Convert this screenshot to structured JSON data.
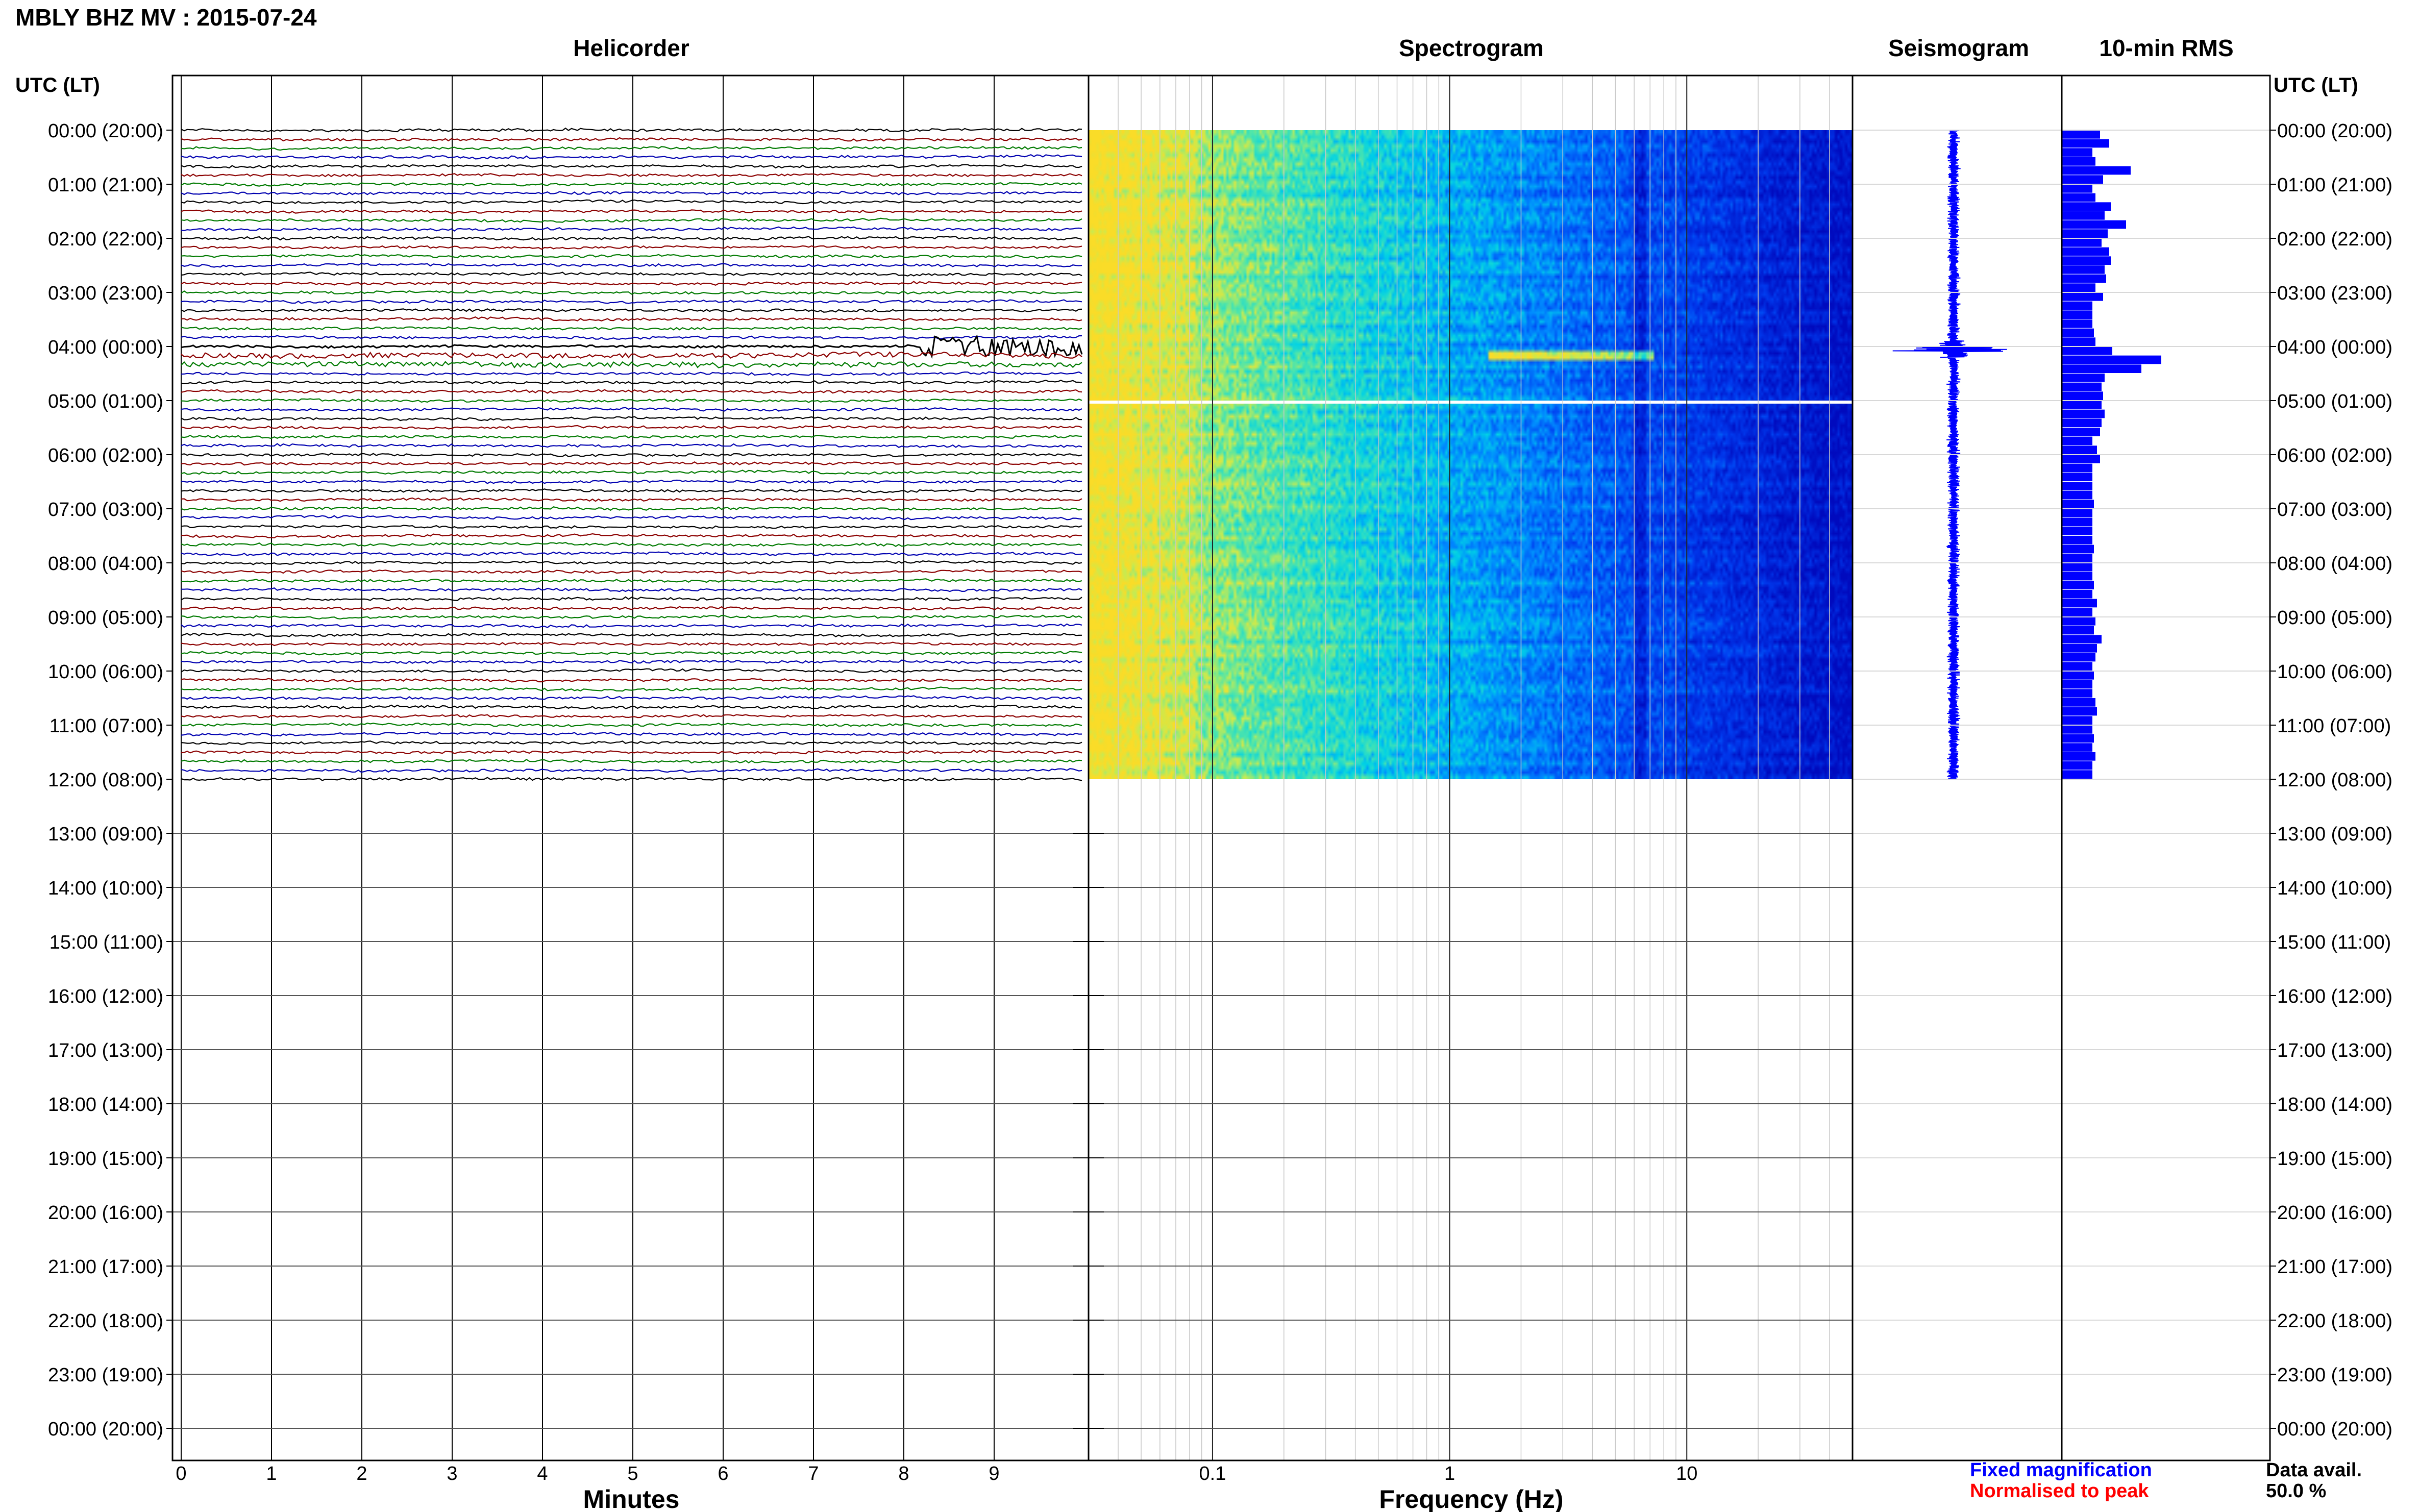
{
  "header": {
    "title": "MBLY BHZ MV : 2015-07-24",
    "left_axis_title": "UTC (LT)",
    "right_axis_title": "UTC (LT)"
  },
  "panels": {
    "helicorder": "Helicorder",
    "spectrogram": "Spectrogram",
    "seismogram": "Seismogram",
    "rms": "10-min RMS"
  },
  "footer": {
    "minutes_label": "Minutes",
    "frequency_label": "Frequency (Hz)",
    "fixed_magnification": "Fixed magnification",
    "normalised_to_peak": "Normalised to peak",
    "data_avail_label": "Data avail.",
    "data_avail_value": "50.0 %"
  },
  "colors": {
    "trace_black": "#000000",
    "trace_red": "#8b0000",
    "trace_green": "#007a00",
    "trace_blue": "#0000b0",
    "rms_bar": "#0000ff",
    "fixed_magnification": "#0000ff",
    "normalised_to_peak": "#ff0000",
    "spectrogram_low": "#0010d0",
    "spectrogram_high": "#f0e040"
  },
  "chart_data": [
    {
      "type": "line",
      "panel": "helicorder",
      "title": "Helicorder",
      "xlabel": "Minutes",
      "x_ticks": [
        0,
        1,
        2,
        3,
        4,
        5,
        6,
        7,
        8,
        9
      ],
      "xlim": [
        0,
        10
      ],
      "row_duration_minutes": 10,
      "trace_color_cycle": [
        "black",
        "red",
        "green",
        "blue"
      ],
      "rows_with_data": 73,
      "annotations": [
        "high-amplitude signal from ~8.2 to 10 min in row 04:00",
        "elevated noise row ~04:10"
      ]
    },
    {
      "type": "heatmap",
      "panel": "spectrogram",
      "title": "Spectrogram",
      "xlabel": "Frequency (Hz)",
      "x_scale": "log",
      "xlim": [
        0.03,
        50
      ],
      "x_ticks": [
        0.1,
        1,
        10
      ],
      "x_tick_labels": [
        "0.1",
        "1",
        "10"
      ],
      "data_time_range_utc": [
        "00:00",
        "12:00"
      ]
    },
    {
      "type": "line",
      "panel": "seismogram",
      "title": "Seismogram",
      "data_time_range_utc": [
        "00:00",
        "12:00"
      ],
      "annotations": [
        "spike at ~04:00"
      ]
    },
    {
      "type": "bar",
      "panel": "rms",
      "title": "10-min RMS",
      "orientation": "horizontal",
      "bin_minutes": 10,
      "values_relative": [
        0.25,
        0.31,
        0.2,
        0.22,
        0.45,
        0.27,
        0.2,
        0.22,
        0.32,
        0.28,
        0.42,
        0.3,
        0.26,
        0.31,
        0.32,
        0.28,
        0.29,
        0.22,
        0.27,
        0.2,
        0.2,
        0.2,
        0.21,
        0.22,
        0.33,
        0.65,
        0.52,
        0.28,
        0.26,
        0.27,
        0.26,
        0.28,
        0.26,
        0.25,
        0.2,
        0.23,
        0.25,
        0.2,
        0.2,
        0.2,
        0.2,
        0.21,
        0.2,
        0.2,
        0.2,
        0.2,
        0.21,
        0.2,
        0.2,
        0.2,
        0.21,
        0.2,
        0.23,
        0.2,
        0.22,
        0.21,
        0.26,
        0.23,
        0.22,
        0.2,
        0.21,
        0.2,
        0.2,
        0.22,
        0.23,
        0.2,
        0.2,
        0.21,
        0.2,
        0.22,
        0.2,
        0.2
      ]
    },
    {
      "type": "table",
      "panel": "time_axis",
      "ylabel": "UTC (LT)",
      "y_tick_labels": [
        "00:00 (20:00)",
        "01:00 (21:00)",
        "02:00 (22:00)",
        "03:00 (23:00)",
        "04:00 (00:00)",
        "05:00 (01:00)",
        "06:00 (02:00)",
        "07:00 (03:00)",
        "08:00 (04:00)",
        "09:00 (05:00)",
        "10:00 (06:00)",
        "11:00 (07:00)",
        "12:00 (08:00)",
        "13:00 (09:00)",
        "14:00 (10:00)",
        "15:00 (11:00)",
        "16:00 (12:00)",
        "17:00 (13:00)",
        "18:00 (14:00)",
        "19:00 (15:00)",
        "20:00 (16:00)",
        "21:00 (17:00)",
        "22:00 (18:00)",
        "23:00 (19:00)",
        "00:00 (20:00)"
      ]
    }
  ]
}
